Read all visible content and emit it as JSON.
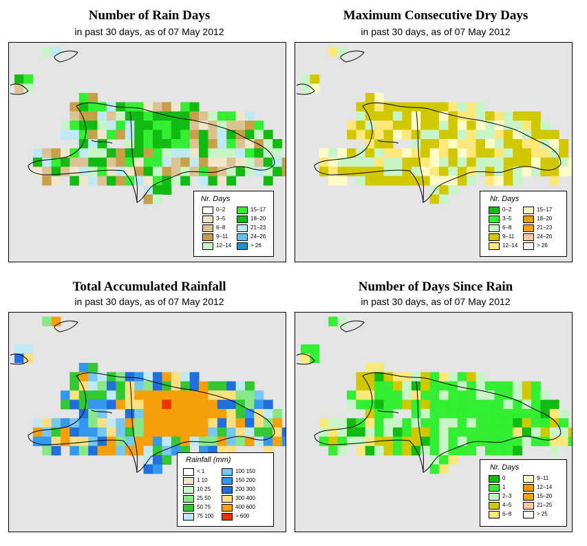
{
  "subtitle": "in past 30 days, as of  07 May 2012",
  "panels": [
    {
      "title": "Number of Rain Days",
      "legend_title": "Nr. Days",
      "legend": [
        {
          "label": "0–2",
          "color": "#ffffff"
        },
        {
          "label": "3–5",
          "color": "#f0e6cc"
        },
        {
          "label": "6–8",
          "color": "#dcc394"
        },
        {
          "label": "9–11",
          "color": "#c8a04a"
        },
        {
          "label": "12–14",
          "color": "#c8f5c8"
        },
        {
          "label": "15–17",
          "color": "#33ee33"
        },
        {
          "label": "18–20",
          "color": "#11bb11"
        },
        {
          "label": "21–23",
          "color": "#bfe9f5"
        },
        {
          "label": "24–26",
          "color": "#66c3ee"
        },
        {
          "label": "> 26",
          "color": "#1c90d0"
        }
      ]
    },
    {
      "title": "Maximum Consecutive Dry Days",
      "legend_title": "Nr. Days",
      "legend": [
        {
          "label": "0–2",
          "color": "#11bb11"
        },
        {
          "label": "3–5",
          "color": "#33ee33"
        },
        {
          "label": "6–8",
          "color": "#c8f5c8"
        },
        {
          "label": "9–11",
          "color": "#d2c800"
        },
        {
          "label": "12–14",
          "color": "#fbe77a"
        },
        {
          "label": "15–17",
          "color": "#fffcc8"
        },
        {
          "label": "18–20",
          "color": "#ee9a00"
        },
        {
          "label": "21–23",
          "color": "#f4a010"
        },
        {
          "label": "24–26",
          "color": "#fbc8a0"
        },
        {
          "label": "> 26",
          "color": "#fff8f0"
        }
      ]
    },
    {
      "title": "Total Accumulated Rainfall",
      "legend_title": "Rainfall (mm)",
      "legend": [
        {
          "label": "< 1",
          "color": "#ffffff"
        },
        {
          "label": "1    10",
          "color": "#f2e6c8"
        },
        {
          "label": "10    25",
          "color": "#c8f5c8"
        },
        {
          "label": "25    50",
          "color": "#88e888"
        },
        {
          "label": "50    75",
          "color": "#33c833"
        },
        {
          "label": "75   100",
          "color": "#bfe9f5"
        },
        {
          "label": "100   150",
          "color": "#77c8f0"
        },
        {
          "label": "150   200",
          "color": "#3399ee"
        },
        {
          "label": "200   300",
          "color": "#1f6fdc"
        },
        {
          "label": "300   400",
          "color": "#fbe080"
        },
        {
          "label": "400   600",
          "color": "#f5a00a"
        },
        {
          "label": "> 600",
          "color": "#ee3300"
        }
      ]
    },
    {
      "title": "Number of Days Since Rain",
      "legend_title": "Nr. Days",
      "legend": [
        {
          "label": "0",
          "color": "#11bb11"
        },
        {
          "label": "1",
          "color": "#33ee33"
        },
        {
          "label": "2–3",
          "color": "#c8f5c8"
        },
        {
          "label": "4–5",
          "color": "#d2c800"
        },
        {
          "label": "6–8",
          "color": "#fbe77a"
        },
        {
          "label": "9–11",
          "color": "#fffcc8"
        },
        {
          "label": "12–14",
          "color": "#e89a00"
        },
        {
          "label": "15–20",
          "color": "#f4a010"
        },
        {
          "label": "21–25",
          "color": "#fbc8a0"
        },
        {
          "label": "> 25",
          "color": "#fff8f0"
        }
      ]
    }
  ]
}
